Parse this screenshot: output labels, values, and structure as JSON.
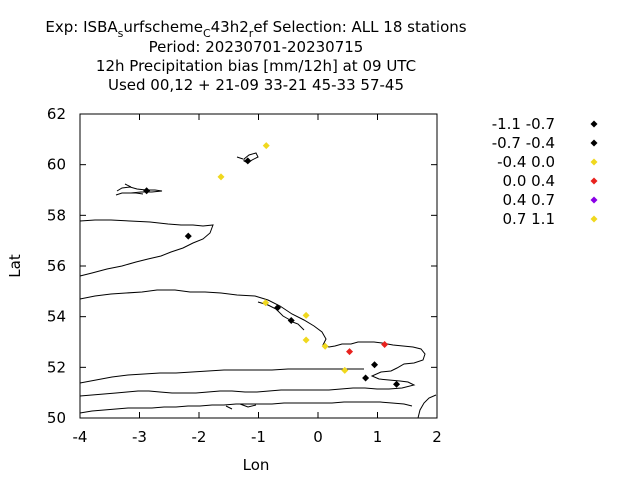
{
  "chart_data": {
    "type": "scatter",
    "title_lines": [
      {
        "parts": [
          {
            "text": "Exp: ISBA"
          },
          {
            "text": "s",
            "sub": true
          },
          {
            "text": "urfscheme"
          },
          {
            "text": "C",
            "sub": true
          },
          {
            "text": "43h2"
          },
          {
            "text": "r",
            "sub": true
          },
          {
            "text": "ef   Selection: ALL      18 stations"
          }
        ]
      },
      {
        "text": "Period: 20230701-20230715"
      },
      {
        "text": "12h Precipitation bias [mm/12h] at  09 UTC"
      },
      {
        "text": "Used  00,12  + 21-09 33-21 45-33 57-45"
      }
    ],
    "xlabel": "Lon",
    "ylabel": "Lat",
    "xlim": [
      -4,
      2
    ],
    "ylim": [
      50,
      62
    ],
    "xticks": [
      "-4",
      "-3",
      "-2",
      "-1",
      "0",
      "1",
      "2"
    ],
    "yticks": [
      "50",
      "52",
      "54",
      "56",
      "58",
      "60",
      "62"
    ],
    "legend_position": "right",
    "legend": [
      {
        "label": "-1.1 -0.7",
        "color": "#000000"
      },
      {
        "label": "-0.7 -0.4",
        "color": "#000000"
      },
      {
        "label": "-0.4 0.0",
        "color": "#f0d81e"
      },
      {
        "label": "0.0 0.4",
        "color": "#e8221e"
      },
      {
        "label": "0.4 0.7",
        "color": "#8a00e6"
      },
      {
        "label": "0.7 1.1",
        "color": "#f0d81e"
      }
    ],
    "series": [
      {
        "values": [
          {
            "lon": -1.18,
            "lat": 60.15
          },
          {
            "lon": -2.88,
            "lat": 58.97
          },
          {
            "lon": -2.18,
            "lat": 57.18
          },
          {
            "lon": -0.68,
            "lat": 54.35
          },
          {
            "lon": -0.45,
            "lat": 53.85
          },
          {
            "lon": 0.95,
            "lat": 52.1
          },
          {
            "lon": 0.8,
            "lat": 51.58
          },
          {
            "lon": 1.32,
            "lat": 51.33
          }
        ]
      },
      {
        "values": [
          {
            "lon": -0.87,
            "lat": 60.75
          },
          {
            "lon": -1.63,
            "lat": 59.52
          },
          {
            "lon": -0.88,
            "lat": 54.55
          },
          {
            "lon": -0.2,
            "lat": 54.05
          },
          {
            "lon": -0.2,
            "lat": 53.08
          },
          {
            "lon": 0.12,
            "lat": 52.83
          },
          {
            "lon": 0.45,
            "lat": 51.88
          }
        ]
      },
      {
        "values": [
          {
            "lon": 0.53,
            "lat": 52.62
          },
          {
            "lon": 1.12,
            "lat": 52.9
          }
        ]
      }
    ]
  }
}
